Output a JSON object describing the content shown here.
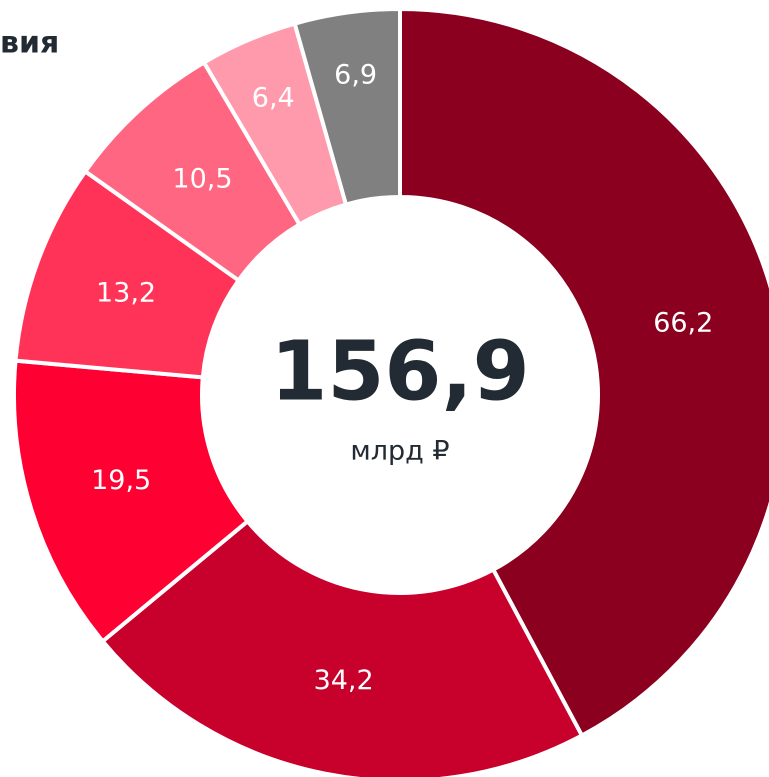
{
  "chart_data": {
    "type": "donut",
    "title": "вия",
    "center_text": "156,9",
    "center_unit": "млрд ₽",
    "categories": [
      null,
      null,
      null,
      null,
      null,
      null,
      null
    ],
    "values": [
      66.2,
      34.2,
      19.5,
      13.2,
      10.5,
      6.4,
      6.9
    ],
    "value_labels": [
      "66,2",
      "34,2",
      "19,5",
      "13,2",
      "10,5",
      "6,4",
      "6,9"
    ],
    "colors": [
      "#8a001e",
      "#c7002c",
      "#ff0033",
      "#ff3358",
      "#ff6682",
      "#ff9aac",
      "#808080"
    ]
  }
}
